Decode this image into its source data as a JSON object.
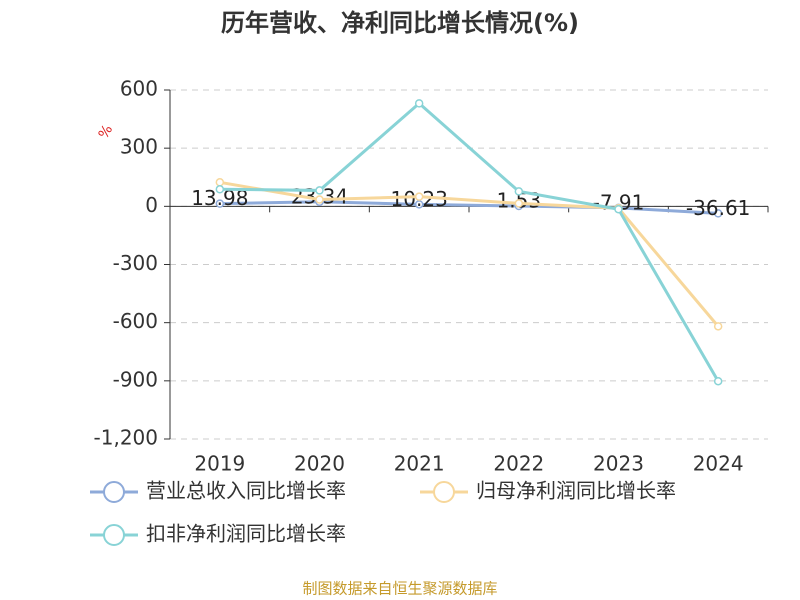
{
  "chart_data": {
    "type": "line",
    "title": "历年营收、净利同比增长情况(%)",
    "y_label": "%",
    "categories": [
      "2019",
      "2020",
      "2021",
      "2022",
      "2023",
      "2024"
    ],
    "series": [
      {
        "name": "营业总收入同比增长率",
        "color": "#8eaad9",
        "values": [
          13.98,
          23.34,
          10.23,
          1.53,
          -7.91,
          -36.61
        ],
        "show_labels": true
      },
      {
        "name": "归母净利润同比增长率",
        "color": "#f7d79b",
        "values": [
          124,
          35,
          50,
          15,
          -10,
          -619
        ]
      },
      {
        "name": "扣非净利润同比增长率",
        "color": "#88d3d6",
        "values": [
          88,
          82,
          531,
          77,
          -15,
          -902
        ]
      }
    ],
    "ylim": [
      -1200,
      600
    ],
    "yticks": [
      600,
      300,
      0,
      -300,
      -600,
      -900,
      {
        "value": -1200,
        "label": "-1,200"
      }
    ],
    "grid": true,
    "source": "制图数据来自恒生聚源数据库"
  }
}
